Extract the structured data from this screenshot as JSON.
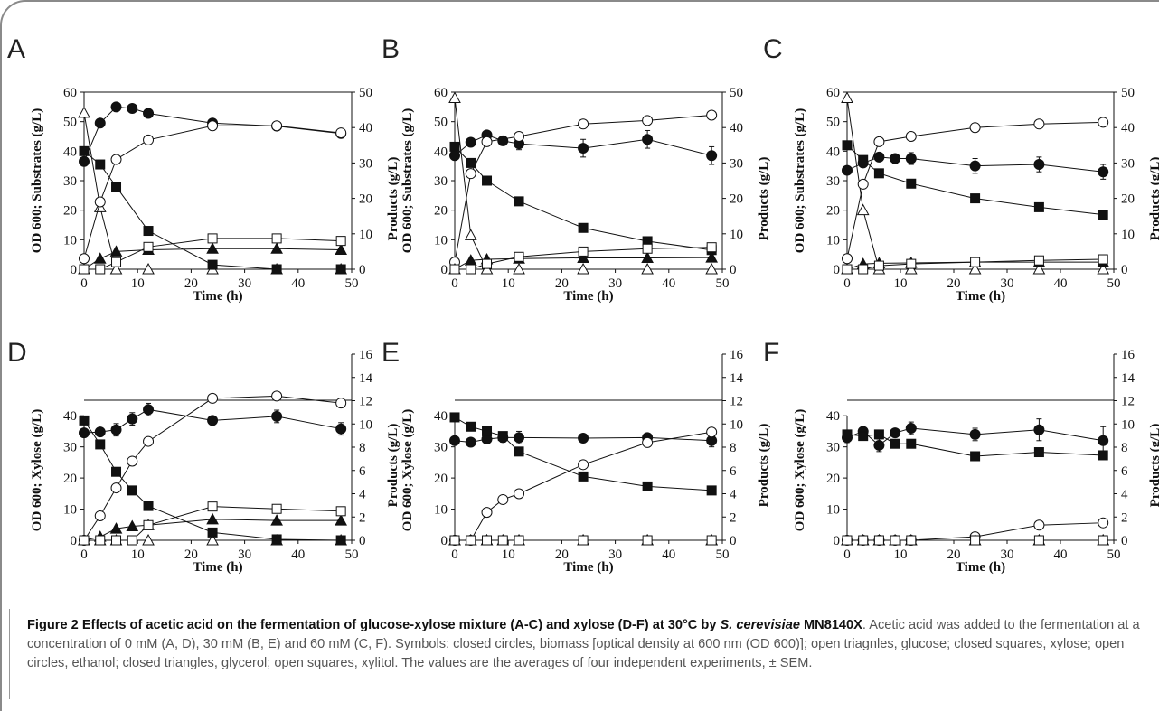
{
  "caption": {
    "title_prefix": "Figure 2 Effects of acetic acid on the fermentation of glucose-xylose mixture (A-C) and xylose (D-F) at 30°C by ",
    "title_italic": "S. cerevisiae",
    "title_suffix": " MN8140X",
    "title_end": ".",
    "body": "Acetic acid was added to the fermentation at a concentration of 0 mM (A, D), 30 mM (B, E) and 60 mM (C, F). Symbols: closed circles, biomass [optical density at 600 nm (OD 600)]; open triagnles, glucose; closed squares, xylose; open circles, ethanol; closed triangles, glycerol; open squares, xylitol. The values are the averages of four independent experiments, ± SEM."
  },
  "colors": {
    "ink": "#111111",
    "open_fill": "#ffffff"
  },
  "chart_data": [
    {
      "panel": "A",
      "type": "line",
      "xlabel": "Time (h)",
      "ylabel_left": "OD 600; Substrates (g/L)",
      "ylabel_right": "Products (g/L)",
      "xlim": [
        0,
        50
      ],
      "xticks": [
        0,
        10,
        20,
        30,
        40,
        50
      ],
      "ylim_left": [
        0,
        60
      ],
      "yticks_left": [
        0,
        10,
        20,
        30,
        40,
        50,
        60
      ],
      "ylim_right": [
        0,
        50
      ],
      "yticks_right": [
        0,
        10,
        20,
        30,
        40,
        50
      ],
      "series": [
        {
          "marker": "circle-filled",
          "axis": "left",
          "x": [
            0,
            3,
            6,
            9,
            12,
            24,
            36,
            48
          ],
          "y": [
            36.5,
            49.5,
            55,
            54.5,
            52.8,
            49.5,
            48.5,
            46
          ],
          "err": [
            0,
            0,
            0,
            0,
            0,
            0,
            1.5,
            0
          ]
        },
        {
          "marker": "triangle-open",
          "axis": "left",
          "x": [
            0,
            3,
            6,
            12,
            24,
            36,
            48
          ],
          "y": [
            53,
            21,
            0,
            0,
            0,
            0,
            0
          ]
        },
        {
          "marker": "square-filled",
          "axis": "left",
          "x": [
            0,
            3,
            6,
            12,
            24,
            36,
            48
          ],
          "y": [
            40,
            35.5,
            28,
            13,
            1.5,
            0,
            0
          ]
        },
        {
          "marker": "circle-open",
          "axis": "right",
          "x": [
            0,
            3,
            6,
            12,
            24,
            36,
            48
          ],
          "y": [
            3,
            19,
            31,
            36.5,
            40.5,
            40.5,
            38.5
          ]
        },
        {
          "marker": "triangle-filled",
          "axis": "right",
          "x": [
            0,
            3,
            6,
            12,
            24,
            36,
            48
          ],
          "y": [
            0,
            3,
            5,
            5.5,
            5.8,
            5.8,
            5.5
          ]
        },
        {
          "marker": "square-open",
          "axis": "right",
          "x": [
            0,
            3,
            6,
            12,
            24,
            36,
            48
          ],
          "y": [
            0,
            0,
            2,
            6.3,
            8.7,
            8.7,
            8
          ]
        }
      ]
    },
    {
      "panel": "B",
      "type": "line",
      "xlabel": "Time (h)",
      "ylabel_left": "OD 600; Substrates (g/L)",
      "ylabel_right": "Products (g/L)",
      "xlim": [
        0,
        50
      ],
      "xticks": [
        0,
        10,
        20,
        30,
        40,
        50
      ],
      "ylim_left": [
        0,
        60
      ],
      "yticks_left": [
        0,
        10,
        20,
        30,
        40,
        50,
        60
      ],
      "ylim_right": [
        0,
        50
      ],
      "yticks_right": [
        0,
        10,
        20,
        30,
        40,
        50
      ],
      "series": [
        {
          "marker": "circle-filled",
          "axis": "left",
          "x": [
            0,
            3,
            6,
            9,
            12,
            24,
            36,
            48
          ],
          "y": [
            38.5,
            43,
            45.5,
            43.5,
            42.5,
            41,
            44,
            38.5
          ],
          "err": [
            0,
            0,
            0,
            1.5,
            2,
            3,
            3,
            3
          ]
        },
        {
          "marker": "triangle-open",
          "axis": "left",
          "x": [
            0,
            3,
            6,
            12,
            24,
            36,
            48
          ],
          "y": [
            58,
            11.5,
            0,
            0,
            0,
            0,
            0
          ]
        },
        {
          "marker": "square-filled",
          "axis": "left",
          "x": [
            0,
            3,
            6,
            12,
            24,
            36,
            48
          ],
          "y": [
            41.5,
            36,
            30,
            23,
            14,
            9.5,
            6.5
          ]
        },
        {
          "marker": "circle-open",
          "axis": "right",
          "x": [
            0,
            3,
            6,
            12,
            24,
            36,
            48
          ],
          "y": [
            2,
            27,
            36,
            37.5,
            41,
            42,
            43.5
          ]
        },
        {
          "marker": "triangle-filled",
          "axis": "right",
          "x": [
            0,
            3,
            6,
            12,
            24,
            36,
            48
          ],
          "y": [
            0,
            2.5,
            2.8,
            3,
            3.2,
            3.2,
            3.3
          ]
        },
        {
          "marker": "square-open",
          "axis": "right",
          "x": [
            0,
            3,
            6,
            12,
            24,
            36,
            48
          ],
          "y": [
            0,
            0,
            1.5,
            3.5,
            5,
            5.8,
            6.2
          ]
        }
      ]
    },
    {
      "panel": "C",
      "type": "line",
      "xlabel": "Time (h)",
      "ylabel_left": "OD 600; Substrates (g/L)",
      "ylabel_right": "Products (g/L)",
      "xlim": [
        0,
        50
      ],
      "xticks": [
        0,
        10,
        20,
        30,
        40,
        50
      ],
      "ylim_left": [
        0,
        60
      ],
      "yticks_left": [
        0,
        10,
        20,
        30,
        40,
        50,
        60
      ],
      "ylim_right": [
        0,
        50
      ],
      "yticks_right": [
        0,
        10,
        20,
        30,
        40,
        50
      ],
      "series": [
        {
          "marker": "circle-filled",
          "axis": "left",
          "x": [
            0,
            3,
            6,
            9,
            12,
            24,
            36,
            48
          ],
          "y": [
            33.5,
            36,
            38,
            37.5,
            37.5,
            35,
            35.5,
            33
          ],
          "err": [
            0,
            0,
            0,
            1.5,
            2,
            2.5,
            2.5,
            2.5
          ]
        },
        {
          "marker": "triangle-open",
          "axis": "left",
          "x": [
            0,
            3,
            6,
            12,
            24,
            36,
            48
          ],
          "y": [
            58,
            20,
            0,
            0,
            0,
            0,
            0
          ]
        },
        {
          "marker": "square-filled",
          "axis": "left",
          "x": [
            0,
            3,
            6,
            12,
            24,
            36,
            48
          ],
          "y": [
            42,
            37,
            32.5,
            29,
            24,
            21,
            18.5
          ]
        },
        {
          "marker": "circle-open",
          "axis": "right",
          "x": [
            0,
            3,
            6,
            12,
            24,
            36,
            48
          ],
          "y": [
            3,
            24,
            36,
            37.5,
            40,
            41,
            41.5
          ]
        },
        {
          "marker": "triangle-filled",
          "axis": "right",
          "x": [
            0,
            3,
            6,
            12,
            24,
            36,
            48
          ],
          "y": [
            0,
            1.5,
            1.7,
            1.8,
            2,
            2,
            2
          ]
        },
        {
          "marker": "square-open",
          "axis": "right",
          "x": [
            0,
            3,
            6,
            12,
            24,
            36,
            48
          ],
          "y": [
            0,
            0,
            1,
            1.5,
            2,
            2.5,
            2.8
          ]
        }
      ]
    },
    {
      "panel": "D",
      "type": "line",
      "xlabel": "Time (h)",
      "ylabel_left": "OD 600; Xylose (g/L)",
      "ylabel_right": "Products (g/L)",
      "xlim": [
        0,
        50
      ],
      "xticks": [
        0,
        10,
        20,
        30,
        40,
        50
      ],
      "ylim_left": [
        0,
        45
      ],
      "yticks_left": [
        0,
        10,
        20,
        30,
        40
      ],
      "ylim_right": [
        0,
        16
      ],
      "yticks_right": [
        0,
        2,
        4,
        6,
        8,
        10,
        12,
        14,
        16
      ],
      "series": [
        {
          "marker": "circle-filled",
          "axis": "left",
          "x": [
            0,
            3,
            6,
            9,
            12,
            24,
            36,
            48
          ],
          "y": [
            34.5,
            34.8,
            35.5,
            39,
            42,
            38.5,
            39.8,
            35.8
          ],
          "err": [
            0,
            0,
            2,
            2,
            2,
            0,
            2,
            2
          ]
        },
        {
          "marker": "triangle-open",
          "axis": "left",
          "x": [
            0,
            3,
            6,
            12,
            24,
            36,
            48
          ],
          "y": [
            0,
            0,
            0,
            0,
            0,
            0,
            0
          ]
        },
        {
          "marker": "square-filled",
          "axis": "left",
          "x": [
            0,
            3,
            6,
            9,
            12,
            24,
            36,
            48
          ],
          "y": [
            38.5,
            30.8,
            22,
            16,
            11,
            2.5,
            0.3,
            0
          ]
        },
        {
          "marker": "circle-open",
          "axis": "right",
          "x": [
            0,
            3,
            6,
            9,
            12,
            24,
            36,
            48
          ],
          "y": [
            0,
            2.1,
            4.5,
            6.8,
            8.5,
            12.2,
            12.4,
            11.8
          ]
        },
        {
          "marker": "triangle-filled",
          "axis": "right",
          "x": [
            0,
            3,
            6,
            9,
            12,
            24,
            36,
            48
          ],
          "y": [
            0,
            0.3,
            1,
            1.2,
            1.3,
            1.8,
            1.7,
            1.7
          ]
        },
        {
          "marker": "square-open",
          "axis": "right",
          "x": [
            0,
            3,
            6,
            9,
            12,
            24,
            36,
            48
          ],
          "y": [
            0,
            0,
            0,
            0,
            1.3,
            2.9,
            2.7,
            2.5
          ]
        }
      ]
    },
    {
      "panel": "E",
      "type": "line",
      "xlabel": "Time (h)",
      "ylabel_left": "OD 600; Xylose (g/L)",
      "ylabel_right": "Products (g/L)",
      "xlim": [
        0,
        50
      ],
      "xticks": [
        0,
        10,
        20,
        30,
        40,
        50
      ],
      "ylim_left": [
        0,
        45
      ],
      "yticks_left": [
        0,
        10,
        20,
        30,
        40
      ],
      "ylim_right": [
        0,
        16
      ],
      "yticks_right": [
        0,
        2,
        4,
        6,
        8,
        10,
        12,
        14,
        16
      ],
      "series": [
        {
          "marker": "circle-filled",
          "axis": "left",
          "x": [
            0,
            3,
            6,
            9,
            12,
            24,
            36,
            48
          ],
          "y": [
            32,
            31.5,
            32.5,
            33,
            33,
            32.8,
            33,
            32
          ],
          "err": [
            0,
            0,
            0,
            1.5,
            2,
            0,
            0,
            2
          ]
        },
        {
          "marker": "triangle-open",
          "axis": "left",
          "x": [
            0,
            3,
            6,
            9,
            12,
            24,
            36,
            48
          ],
          "y": [
            0,
            0,
            0,
            0,
            0,
            0,
            0,
            0
          ]
        },
        {
          "marker": "square-filled",
          "axis": "left",
          "x": [
            0,
            3,
            6,
            9,
            12,
            24,
            36,
            48
          ],
          "y": [
            39.5,
            36.5,
            35,
            33.5,
            28.5,
            20.5,
            17.3,
            16
          ]
        },
        {
          "marker": "circle-open",
          "axis": "right",
          "x": [
            0,
            3,
            6,
            9,
            12,
            24,
            36,
            48
          ],
          "y": [
            0,
            0,
            2.4,
            3.5,
            4,
            6.5,
            8.4,
            9.3
          ]
        },
        {
          "marker": "triangle-filled",
          "axis": "right",
          "x": [
            0,
            3,
            6,
            9,
            12,
            24,
            36,
            48
          ],
          "y": [
            0,
            0,
            0,
            0,
            0,
            0,
            0,
            0
          ]
        },
        {
          "marker": "square-open",
          "axis": "right",
          "x": [
            0,
            3,
            6,
            9,
            12,
            24,
            36,
            48
          ],
          "y": [
            0,
            0,
            0,
            0,
            0,
            0,
            0,
            0
          ]
        }
      ]
    },
    {
      "panel": "F",
      "type": "line",
      "xlabel": "Time (h)",
      "ylabel_left": "OD 600; Xylose (g/L)",
      "ylabel_right": "Products (g/L)",
      "xlim": [
        0,
        50
      ],
      "xticks": [
        0,
        10,
        20,
        30,
        40,
        50
      ],
      "ylim_left": [
        0,
        45
      ],
      "yticks_left": [
        0,
        10,
        20,
        30,
        40
      ],
      "ylim_right": [
        0,
        16
      ],
      "yticks_right": [
        0,
        2,
        4,
        6,
        8,
        10,
        12,
        14,
        16
      ],
      "series": [
        {
          "marker": "circle-filled",
          "axis": "left",
          "x": [
            0,
            3,
            6,
            9,
            12,
            24,
            36,
            48
          ],
          "y": [
            33,
            35,
            30.5,
            34.5,
            36,
            34,
            35.5,
            32
          ],
          "err": [
            2,
            0,
            2,
            0,
            2,
            2,
            3.5,
            4.5
          ]
        },
        {
          "marker": "triangle-open",
          "axis": "left",
          "x": [
            0,
            3,
            6,
            9,
            12,
            24,
            36,
            48
          ],
          "y": [
            0,
            0,
            0,
            0,
            0,
            0,
            0,
            0
          ]
        },
        {
          "marker": "square-filled",
          "axis": "left",
          "x": [
            0,
            3,
            6,
            9,
            12,
            24,
            36,
            48
          ],
          "y": [
            34,
            33.5,
            34,
            31,
            31,
            27,
            28.3,
            27.3
          ]
        },
        {
          "marker": "circle-open",
          "axis": "right",
          "x": [
            0,
            3,
            6,
            9,
            12,
            24,
            36,
            48
          ],
          "y": [
            0,
            0,
            0,
            0,
            0,
            0.3,
            1.3,
            1.5
          ]
        },
        {
          "marker": "triangle-filled",
          "axis": "right",
          "x": [
            0,
            3,
            6,
            9,
            12,
            24,
            36,
            48
          ],
          "y": [
            0,
            0,
            0,
            0,
            0,
            0,
            0,
            0
          ]
        },
        {
          "marker": "square-open",
          "axis": "right",
          "x": [
            0,
            3,
            6,
            9,
            12,
            24,
            36,
            48
          ],
          "y": [
            0,
            0,
            0,
            0,
            0,
            0,
            0,
            0
          ]
        }
      ]
    }
  ]
}
